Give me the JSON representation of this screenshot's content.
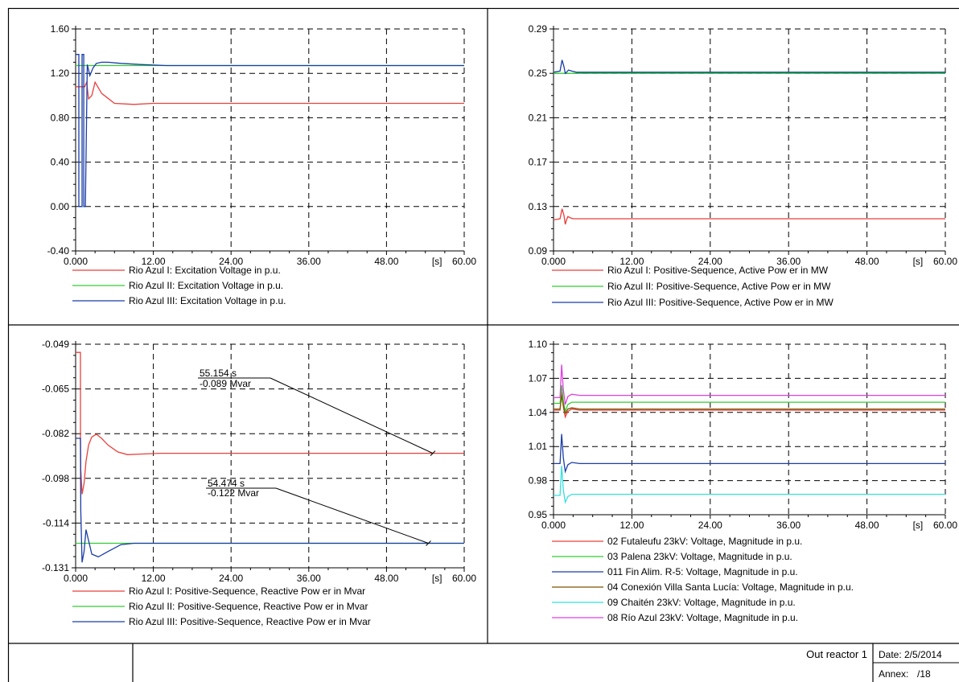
{
  "chart_data": [
    {
      "type": "line",
      "xunit": "[s]",
      "xlim": [
        0,
        60
      ],
      "ylim": [
        -0.4,
        1.6
      ],
      "xticks": [
        "0.000",
        "12.00",
        "24.00",
        "36.00",
        "48.00",
        "60.00"
      ],
      "yticks": [
        "1.60",
        "1.20",
        "0.80",
        "0.40",
        "0.00",
        "-0.40"
      ],
      "series": [
        {
          "name": "Rio Azul I: Excitation Voltage in p.u.",
          "color": "#e8403c",
          "x": [
            0,
            0.5,
            0.6,
            0.65,
            0.7,
            0.75,
            0.8,
            0.9,
            1.0,
            1.1,
            1.25,
            1.4,
            1.7,
            2.0,
            2.5,
            3.0,
            4.0,
            6.0,
            9.0,
            12.0,
            20.0,
            60.0
          ],
          "y": [
            1.08,
            1.08,
            1.08,
            1.08,
            1.08,
            1.08,
            1.08,
            1.08,
            1.08,
            1.08,
            1.08,
            1.08,
            1.12,
            0.97,
            1.0,
            1.12,
            1.02,
            0.93,
            0.92,
            0.93,
            0.93,
            0.93
          ]
        },
        {
          "name": "Rio Azul II: Excitation Voltage in p.u.",
          "color": "#33cc33",
          "x": [
            0,
            60.0
          ],
          "y": [
            1.27,
            1.27
          ]
        },
        {
          "name": "Rio Azul III: Excitation Voltage in p.u.",
          "color": "#1a3da8",
          "x": [
            0,
            0.5,
            0.5,
            1.0,
            1.0,
            1.25,
            1.25,
            1.5,
            1.8,
            2.2,
            2.7,
            3.2,
            4.0,
            5.0,
            7.0,
            10.0,
            14.0,
            20.0,
            60.0
          ],
          "y": [
            1.37,
            1.37,
            0.0,
            0.0,
            1.37,
            1.37,
            0.0,
            0.0,
            1.28,
            1.18,
            1.25,
            1.29,
            1.3,
            1.3,
            1.29,
            1.28,
            1.27,
            1.27,
            1.27
          ]
        }
      ]
    },
    {
      "type": "line",
      "xunit": "[s]",
      "xlim": [
        0,
        60
      ],
      "ylim": [
        0.09,
        0.29
      ],
      "xticks": [
        "0.000",
        "12.00",
        "24.00",
        "36.00",
        "48.00",
        "60.00"
      ],
      "yticks": [
        "0.29",
        "0.25",
        "0.21",
        "0.17",
        "0.13",
        "0.09"
      ],
      "series": [
        {
          "name": "Rio Azul I: Positive-Sequence, Active Pow er in MW",
          "color": "#e8403c",
          "x": [
            0,
            1.0,
            1.3,
            1.6,
            1.8,
            2.0,
            2.2,
            2.5,
            3.0,
            5.0,
            60.0
          ],
          "y": [
            0.118,
            0.119,
            0.128,
            0.122,
            0.114,
            0.118,
            0.121,
            0.12,
            0.119,
            0.119,
            0.119
          ]
        },
        {
          "name": "Rio Azul II: Positive-Sequence, Active Pow er in MW",
          "color": "#33cc33",
          "x": [
            0,
            60.0
          ],
          "y": [
            0.25,
            0.25
          ]
        },
        {
          "name": "Rio Azul III: Positive-Sequence, Active Pow er in MW",
          "color": "#1a3da8",
          "x": [
            0,
            1.0,
            1.3,
            1.6,
            1.8,
            2.0,
            2.3,
            2.8,
            3.5,
            5.0,
            60.0
          ],
          "y": [
            0.251,
            0.252,
            0.262,
            0.256,
            0.25,
            0.251,
            0.253,
            0.252,
            0.251,
            0.251,
            0.251
          ]
        }
      ]
    },
    {
      "type": "line",
      "xunit": "[s]",
      "xlim": [
        0,
        60
      ],
      "ylim": [
        -0.131,
        -0.049
      ],
      "xticks": [
        "0.000",
        "12.00",
        "24.00",
        "36.00",
        "48.00",
        "60.00"
      ],
      "yticks": [
        "-0.049",
        "-0.065",
        "-0.082",
        "-0.098",
        "-0.114",
        "-0.131"
      ],
      "annotations": [
        {
          "time": "55.154 s",
          "value": "-0.089 Mvar",
          "target_x": 55.154,
          "target_y": -0.089
        },
        {
          "time": "54.474 s",
          "value": "-0.122 Mvar",
          "target_x": 54.474,
          "target_y": -0.122
        }
      ],
      "series": [
        {
          "name": "Rio Azul I: Positive-Sequence, Reactive Pow er in Mvar",
          "color": "#e8403c",
          "x": [
            0,
            0.75,
            0.75,
            0.8,
            1.0,
            1.3,
            1.6,
            2.0,
            2.5,
            3.2,
            4.0,
            5.0,
            6.5,
            8.0,
            10.0,
            13.0,
            60.0
          ],
          "y": [
            -0.052,
            -0.052,
            -0.084,
            -0.095,
            -0.104,
            -0.1,
            -0.092,
            -0.086,
            -0.083,
            -0.082,
            -0.0835,
            -0.086,
            -0.0885,
            -0.0895,
            -0.0893,
            -0.089,
            -0.089
          ]
        },
        {
          "name": "Rio Azul II: Positive-Sequence, Reactive Pow er in Mvar",
          "color": "#33cc33",
          "x": [
            0,
            60.0
          ],
          "y": [
            -0.122,
            -0.122
          ]
        },
        {
          "name": "Rio Azul III: Positive-Sequence, Reactive Pow er in Mvar",
          "color": "#1a3da8",
          "x": [
            0,
            0.75,
            0.8,
            1.0,
            1.3,
            1.6,
            2.0,
            2.5,
            3.5,
            5.0,
            7.0,
            9.0,
            12.0,
            60.0
          ],
          "y": [
            -0.0835,
            -0.0835,
            -0.11,
            -0.129,
            -0.125,
            -0.117,
            -0.121,
            -0.126,
            -0.127,
            -0.125,
            -0.1225,
            -0.122,
            -0.122,
            -0.122
          ]
        }
      ]
    },
    {
      "type": "line",
      "xunit": "[s]",
      "xlim": [
        0,
        60
      ],
      "ylim": [
        0.95,
        1.1
      ],
      "xticks": [
        "0.000",
        "12.00",
        "24.00",
        "36.00",
        "48.00",
        "60.00"
      ],
      "yticks": [
        "1.10",
        "1.07",
        "1.04",
        "1.01",
        "0.98",
        "0.95"
      ],
      "series": [
        {
          "name": "02 Futaleufu 23kV: Voltage, Magnitude in p.u.",
          "color": "#e8403c",
          "x": [
            0,
            1.0,
            1.25,
            1.5,
            1.8,
            2.2,
            2.8,
            4.0,
            60.0
          ],
          "y": [
            1.042,
            1.042,
            1.058,
            1.045,
            1.036,
            1.041,
            1.043,
            1.042,
            1.042
          ]
        },
        {
          "name": "03 Palena 23kV: Voltage, Magnitude in p.u.",
          "color": "#33cc33",
          "x": [
            0,
            1.0,
            1.25,
            1.5,
            1.8,
            2.2,
            2.8,
            4.0,
            60.0
          ],
          "y": [
            1.048,
            1.048,
            1.064,
            1.05,
            1.041,
            1.047,
            1.049,
            1.049,
            1.049
          ]
        },
        {
          "name": "011 Fin Alim. R-5: Voltage, Magnitude in p.u.",
          "color": "#1a3da8",
          "x": [
            0,
            1.0,
            1.25,
            1.5,
            1.8,
            2.2,
            2.8,
            4.0,
            60.0
          ],
          "y": [
            0.995,
            0.995,
            1.021,
            1.0,
            0.988,
            0.994,
            0.996,
            0.995,
            0.995
          ]
        },
        {
          "name": "04 Conexión Villa Santa Lucía: Voltage, Magnitude in p.u.",
          "color": "#7a5500",
          "x": [
            0,
            1.0,
            1.25,
            1.5,
            1.8,
            2.2,
            2.8,
            4.0,
            60.0
          ],
          "y": [
            1.043,
            1.043,
            1.055,
            1.046,
            1.039,
            1.043,
            1.044,
            1.043,
            1.043
          ]
        },
        {
          "name": "09 Chaitén 23kV: Voltage, Magnitude in p.u.",
          "color": "#33e0e0",
          "x": [
            0,
            1.0,
            1.25,
            1.5,
            1.8,
            2.2,
            2.8,
            4.0,
            60.0
          ],
          "y": [
            0.967,
            0.967,
            0.993,
            0.972,
            0.961,
            0.966,
            0.968,
            0.968,
            0.968
          ]
        },
        {
          "name": "08 Río Azul 23kV: Voltage, Magnitude in p.u.",
          "color": "#e040e0",
          "x": [
            0,
            1.0,
            1.25,
            1.5,
            1.8,
            2.2,
            2.8,
            4.0,
            60.0
          ],
          "y": [
            1.053,
            1.053,
            1.082,
            1.06,
            1.047,
            1.054,
            1.056,
            1.055,
            1.055
          ]
        }
      ]
    }
  ],
  "footer": {
    "title": "Out reactor 1",
    "date_label": "Date:",
    "date": "2/5/2014",
    "annex_label": "Annex:",
    "annex": "/18"
  }
}
